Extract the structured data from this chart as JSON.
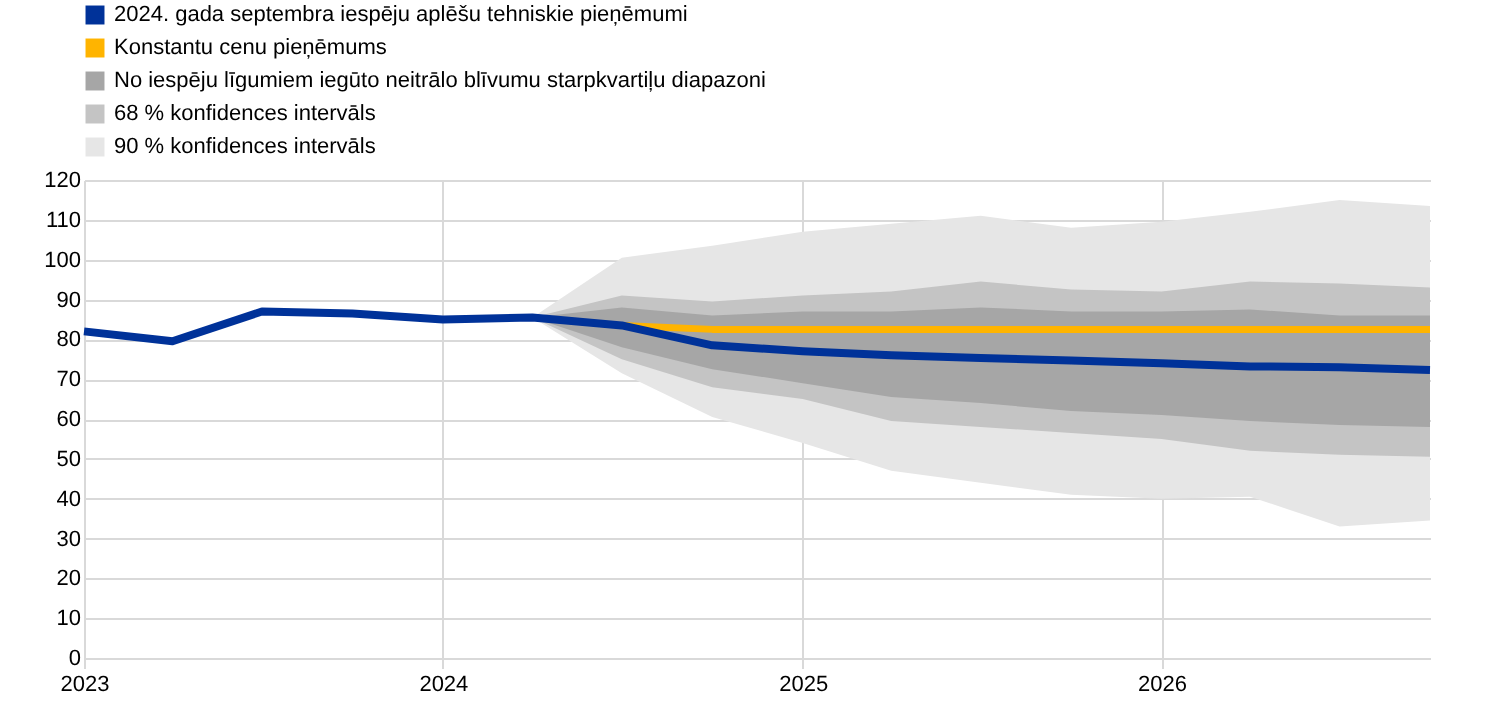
{
  "chart_data": {
    "type": "line",
    "x": [
      "2023-01",
      "2023-04",
      "2023-07",
      "2023-10",
      "2024-01",
      "2024-04",
      "2024-07",
      "2024-10",
      "2025-01",
      "2025-04",
      "2025-07",
      "2025-10",
      "2026-01",
      "2026-04",
      "2026-07",
      "2026-10"
    ],
    "series": [
      {
        "name": "2024. gada septembra iespēju aplēšu tehniskie pieņēmumi",
        "color": "#003299",
        "values": [
          82,
          79.5,
          87,
          86.5,
          85,
          85.5,
          83.5,
          78.5,
          77,
          76,
          75.3,
          74.7,
          74,
          73.2,
          73,
          72.3
        ]
      },
      {
        "name": "Konstantu cenu pieņēmums",
        "color": "#ffb400",
        "x": [
          "2024-07",
          "2024-10",
          "2025-01",
          "2025-04",
          "2025-07",
          "2025-10",
          "2026-01",
          "2026-04",
          "2026-07",
          "2026-10"
        ],
        "values": [
          83.5,
          82.5,
          82.5,
          82.5,
          82.5,
          82.5,
          82.5,
          82.5,
          82.5,
          82.5
        ]
      },
      {
        "name": "No iespēju līgumiem iegūto neitrālo blīvumu starpkvartiļu diapazoni",
        "color": "#a6a6a6",
        "type": "area",
        "x": [
          "2024-04",
          "2024-07",
          "2024-10",
          "2025-01",
          "2025-04",
          "2025-07",
          "2025-10",
          "2026-01",
          "2026-04",
          "2026-07",
          "2026-10"
        ],
        "values": [
          null,
          null,
          null,
          null,
          null,
          null,
          null,
          null,
          null,
          null,
          null
        ],
        "lower": [
          85.5,
          78,
          72.5,
          69,
          65.5,
          64,
          62,
          61,
          59.5,
          58.5,
          58
        ],
        "upper": [
          85.5,
          88,
          86,
          87,
          87,
          88,
          87,
          87,
          87.5,
          86,
          86
        ]
      },
      {
        "name": "68 % konfidences intervāls",
        "color": "#c4c4c4",
        "type": "area",
        "x": [
          "2024-04",
          "2024-07",
          "2024-10",
          "2025-01",
          "2025-04",
          "2025-07",
          "2025-10",
          "2026-01",
          "2026-04",
          "2026-07",
          "2026-10"
        ],
        "values": [
          null,
          null,
          null,
          null,
          null,
          null,
          null,
          null,
          null,
          null,
          null
        ],
        "lower": [
          85.5,
          75,
          68,
          65,
          59.5,
          58,
          56.5,
          55,
          52,
          51,
          50.5
        ],
        "upper": [
          85.5,
          91,
          89.5,
          91,
          92,
          94.5,
          92.5,
          92,
          94.5,
          94,
          93
        ]
      },
      {
        "name": "90 % konfidences intervāls",
        "color": "#e6e6e6",
        "type": "area",
        "x": [
          "2024-04",
          "2024-07",
          "2024-10",
          "2025-01",
          "2025-04",
          "2025-07",
          "2025-10",
          "2026-01",
          "2026-04",
          "2026-07",
          "2026-10"
        ],
        "values": [
          null,
          null,
          null,
          null,
          null,
          null,
          null,
          null,
          null,
          null,
          null
        ],
        "lower": [
          85.5,
          71.5,
          60.5,
          54,
          47,
          44,
          41,
          40,
          40.5,
          33,
          34.5
        ],
        "upper": [
          85.5,
          100.5,
          103.5,
          107,
          109,
          111,
          108,
          109.5,
          112,
          115,
          113.5
        ]
      }
    ],
    "xlim": [
      "2023-01",
      "2026-10"
    ],
    "xticks": [
      "2023",
      "2024",
      "2025",
      "2026"
    ],
    "ylim": [
      0,
      120
    ],
    "yticks": [
      0,
      10,
      20,
      30,
      40,
      50,
      60,
      70,
      80,
      90,
      100,
      110,
      120
    ],
    "grid": true,
    "legend": "top left"
  }
}
